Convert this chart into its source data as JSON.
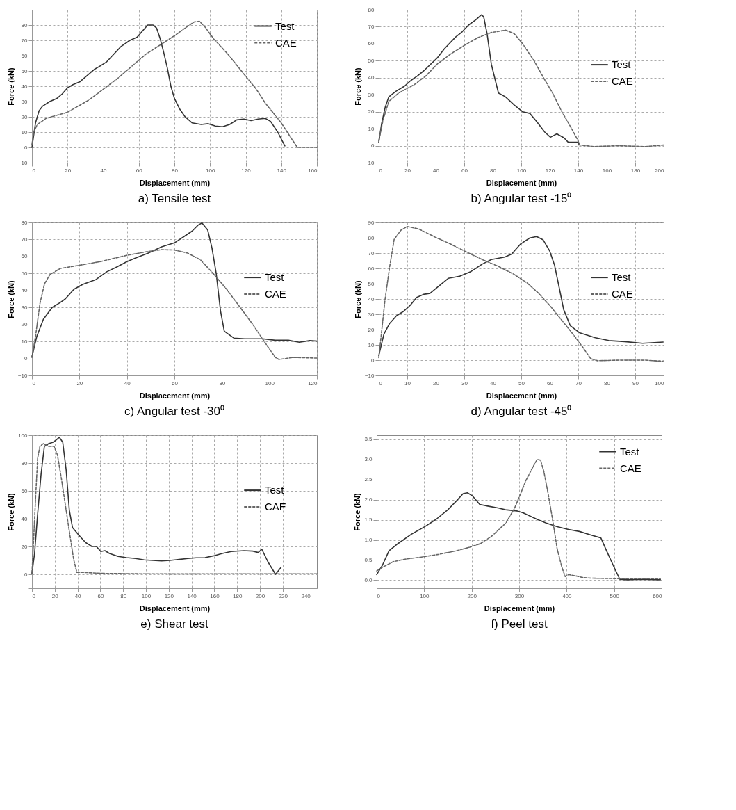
{
  "chart_data": [
    {
      "type": "line",
      "title": "a) Tensile test",
      "xlabel": "Displacement (mm)",
      "ylabel": "Force (kN)",
      "xlim": [
        0,
        160
      ],
      "xticks": [
        0,
        20,
        40,
        60,
        80,
        100,
        120,
        140,
        160
      ],
      "ylim": [
        -10,
        90
      ],
      "yticks": [
        -10,
        0,
        10,
        20,
        30,
        40,
        50,
        60,
        70,
        80
      ],
      "grid": true,
      "legend": "top right",
      "series": [
        {
          "name": "Test",
          "color": "#333333",
          "line_style": "solid",
          "x": [
            0,
            1,
            2,
            4,
            6,
            10,
            14,
            17,
            20,
            23,
            27,
            31,
            35,
            38,
            42,
            46,
            50,
            55,
            59,
            62,
            65,
            68,
            70,
            72,
            74,
            76,
            78,
            80,
            83,
            86,
            90,
            95,
            99,
            103,
            107,
            111,
            115,
            119,
            123,
            127,
            131,
            134,
            138,
            142
          ],
          "values": [
            0,
            8,
            16,
            24,
            27,
            30,
            32,
            35,
            39,
            41,
            43,
            47,
            51,
            53,
            56,
            61,
            66,
            70,
            72,
            76,
            80,
            80,
            78,
            71,
            62,
            52,
            40,
            32,
            25,
            20,
            16,
            15,
            15.5,
            14,
            13.5,
            15,
            18,
            18.5,
            17.5,
            18.5,
            19,
            17,
            10,
            1
          ]
        },
        {
          "name": "CAE",
          "color": "#666666",
          "line_style": "dashed",
          "x": [
            0,
            1,
            3,
            8,
            14,
            20,
            26,
            32,
            40,
            48,
            56,
            64,
            72,
            80,
            86,
            91,
            94,
            97,
            102,
            110,
            119,
            126,
            131,
            140,
            145,
            149,
            160
          ],
          "values": [
            2,
            10,
            15,
            19,
            21,
            23,
            27,
            31,
            38,
            45,
            53,
            61,
            67,
            73,
            78,
            82,
            82.5,
            79,
            71,
            61,
            48,
            38,
            29,
            16,
            7,
            0,
            0
          ]
        }
      ]
    },
    {
      "type": "line",
      "title": "b) Angular test -15⁰",
      "xlabel": "Displacement (mm)",
      "ylabel": "Force (kN)",
      "xlim": [
        0,
        200
      ],
      "xticks": [
        0,
        20,
        40,
        60,
        80,
        100,
        120,
        140,
        160,
        180,
        200
      ],
      "ylim": [
        -10,
        80
      ],
      "yticks": [
        -10,
        0,
        10,
        20,
        30,
        40,
        50,
        60,
        70,
        80
      ],
      "grid": true,
      "legend": "right",
      "series": [
        {
          "name": "Test",
          "color": "#333333",
          "line_style": "solid",
          "x": [
            0,
            2,
            4.5,
            7,
            12,
            18,
            22,
            27,
            31.5,
            41,
            46,
            54,
            58.5,
            63,
            68,
            72,
            73.6,
            76,
            79,
            84,
            89,
            95,
            101,
            106,
            111,
            116.5,
            120.5,
            125,
            130,
            133,
            139.6,
            141
          ],
          "values": [
            2,
            13,
            22.6,
            28.7,
            32,
            35,
            38,
            41,
            44,
            51.6,
            57,
            64,
            67,
            71,
            74,
            77,
            76,
            66,
            48,
            31,
            28.7,
            24,
            20,
            19,
            14,
            8,
            5,
            7,
            4.6,
            2,
            2,
            0.4
          ]
        },
        {
          "name": "CAE",
          "color": "#666666",
          "line_style": "dashed",
          "x": [
            0,
            3,
            7,
            14,
            25,
            33,
            41,
            50.5,
            60,
            69.6,
            79,
            89,
            95,
            101,
            109,
            116,
            122,
            128.5,
            135,
            139.6,
            141,
            151,
            168,
            187,
            200
          ],
          "values": [
            3,
            15,
            26,
            31,
            36,
            41,
            48,
            54,
            59,
            63.6,
            66.6,
            68,
            66,
            60,
            50,
            39.5,
            31,
            20,
            10.6,
            3.4,
            0.4,
            -0.5,
            0,
            -0.5,
            0.4
          ]
        }
      ]
    },
    {
      "type": "line",
      "title": "c) Angular test -30⁰",
      "xlabel": "Displacement (mm)",
      "ylabel": "Force (kN)",
      "xlim": [
        0,
        120
      ],
      "xticks": [
        0,
        20,
        40,
        60,
        80,
        100,
        120
      ],
      "ylim": [
        -10,
        80
      ],
      "yticks": [
        -10,
        0,
        10,
        20,
        30,
        40,
        50,
        60,
        70,
        80
      ],
      "grid": true,
      "legend": "right",
      "series": [
        {
          "name": "Test",
          "color": "#333333",
          "line_style": "solid",
          "x": [
            0,
            2,
            4.8,
            8.5,
            12,
            14,
            17.7,
            21.4,
            27,
            31.5,
            36,
            40,
            43.5,
            49,
            54.6,
            60,
            63.8,
            67.5,
            70,
            71.6,
            74,
            75.8,
            77.6,
            79.4,
            81,
            85,
            89.6,
            97,
            102.5,
            108,
            112.6,
            117,
            120
          ],
          "values": [
            1,
            12.8,
            23,
            30,
            33,
            35,
            40.7,
            43.6,
            46.5,
            51,
            54,
            57,
            59,
            62,
            65.7,
            68,
            71.5,
            75,
            78.5,
            79.7,
            75.6,
            65,
            50,
            28,
            16,
            12,
            11.6,
            11.6,
            10.7,
            10.7,
            9.5,
            10.5,
            10.2
          ]
        },
        {
          "name": "CAE",
          "color": "#666666",
          "line_style": "dashed",
          "x": [
            0,
            1.6,
            3.4,
            5.3,
            7.6,
            12,
            19.5,
            28.8,
            40,
            49,
            54.6,
            60,
            65.6,
            71,
            76.7,
            82,
            87.7,
            93,
            98.8,
            102.5,
            104,
            110,
            120
          ],
          "values": [
            0.6,
            14,
            32.6,
            44,
            49.4,
            53,
            54.7,
            57,
            60.7,
            63,
            64,
            63.8,
            62,
            58,
            49.4,
            40.7,
            30,
            20,
            8,
            0.6,
            -0.6,
            0.6,
            0.2
          ]
        }
      ]
    },
    {
      "type": "line",
      "title": "d) Angular test -45⁰",
      "xlabel": "Displacement (mm)",
      "ylabel": "Force (kN)",
      "xlim": [
        0,
        100
      ],
      "xticks": [
        0,
        10,
        20,
        30,
        40,
        50,
        60,
        70,
        80,
        90,
        100
      ],
      "ylim": [
        -10,
        90
      ],
      "yticks": [
        -10,
        0,
        10,
        20,
        30,
        40,
        50,
        60,
        70,
        80,
        90
      ],
      "grid": true,
      "legend": "right",
      "series": [
        {
          "name": "Test",
          "color": "#333333",
          "line_style": "solid",
          "x": [
            0,
            1.8,
            3.8,
            6.2,
            8.6,
            11,
            13.3,
            15.7,
            18,
            20.5,
            24.4,
            28.4,
            32.4,
            36.3,
            39.5,
            44.2,
            46.6,
            49.8,
            53,
            55.4,
            57.7,
            60,
            61.7,
            63.3,
            64.9,
            67.2,
            70.4,
            76,
            80.7,
            86.3,
            92.6,
            99.8
          ],
          "values": [
            3,
            17,
            24,
            29,
            31.8,
            35.8,
            41,
            43,
            43.7,
            47.6,
            53.5,
            54.9,
            58,
            62.8,
            65.8,
            67.4,
            69.3,
            76,
            79.9,
            80.8,
            78.6,
            71.3,
            62,
            47.6,
            33,
            22.6,
            18,
            14.7,
            12.8,
            12.1,
            11,
            11.8
          ]
        },
        {
          "name": "CAE",
          "color": "#666666",
          "line_style": "dashed",
          "x": [
            0,
            1,
            2.2,
            3.8,
            5.4,
            7.8,
            10,
            14,
            19.7,
            25.2,
            30.8,
            36.3,
            41.9,
            47.4,
            52.2,
            56.1,
            60,
            64,
            68,
            71.2,
            74.4,
            76.8,
            84,
            93.4,
            99.8
          ],
          "values": [
            1.6,
            18.7,
            39.7,
            60.8,
            79,
            85,
            87.4,
            85.8,
            80.5,
            75.9,
            70.7,
            65.8,
            61.4,
            56.2,
            50.3,
            43.7,
            35.8,
            26.6,
            17.4,
            9.5,
            0.9,
            -0.4,
            0,
            0,
            -0.8
          ]
        }
      ]
    },
    {
      "type": "line",
      "title": "e) Shear test",
      "xlabel": "Displacement (mm)",
      "ylabel": "Force (kN)",
      "xlim": [
        0,
        250
      ],
      "xticks": [
        0,
        20,
        40,
        60,
        80,
        100,
        120,
        140,
        160,
        180,
        200,
        220,
        240
      ],
      "ylim": [
        -10,
        100
      ],
      "yticks": [
        {
          "value": -10,
          "label": null
        },
        0,
        20,
        40,
        60,
        80,
        100
      ],
      "grid": true,
      "legend": "right",
      "series": [
        {
          "name": "Test",
          "color": "#333333",
          "line_style": "solid",
          "x": [
            0,
            2.3,
            5,
            8,
            10.9,
            14.7,
            18.5,
            21,
            24,
            27,
            30,
            32.8,
            35.6,
            41.3,
            47,
            52.7,
            56.6,
            60.4,
            64,
            68,
            75.6,
            83,
            91,
            98.5,
            106,
            113.7,
            121,
            129,
            136.6,
            144,
            151.8,
            159.4,
            167,
            174.7,
            186,
            193.7,
            198.5,
            201.7,
            207,
            213.7,
            218.5
          ],
          "values": [
            0.7,
            15,
            43.6,
            72,
            92,
            94,
            95,
            96.4,
            98.6,
            95,
            75,
            46,
            33.6,
            28,
            22.9,
            20,
            20,
            16.4,
            17,
            15,
            12.9,
            12,
            11.4,
            10.4,
            10,
            9.6,
            10,
            10.7,
            11.4,
            11.9,
            12,
            13.3,
            15,
            16.4,
            17,
            16.7,
            15.7,
            18,
            9,
            0,
            5
          ]
        },
        {
          "name": "CAE",
          "color": "#666666",
          "line_style": "dashed",
          "x": [
            0,
            1.3,
            3.2,
            5,
            7,
            10,
            14.7,
            19.4,
            22.3,
            26,
            30,
            33.7,
            36.6,
            39.4,
            45,
            60.4,
            94.7,
            132.8,
            170.9,
            209,
            250
          ],
          "values": [
            0.7,
            22,
            55,
            83.6,
            92,
            94,
            92,
            92,
            86,
            68,
            46,
            26,
            10.7,
            1.4,
            1.4,
            0.7,
            0.4,
            0.3,
            0.4,
            0.4,
            0.4
          ]
        }
      ]
    },
    {
      "type": "line",
      "title": "f) Peel test",
      "xlabel": "Displacement (mm)",
      "ylabel": "Force (kN)",
      "xlim": [
        0,
        600
      ],
      "xticks": [
        0,
        100,
        200,
        300,
        400,
        500,
        600
      ],
      "ylim": [
        -0.2,
        3.6
      ],
      "yticks": [
        {
          "value": 0,
          "label": "0.0"
        },
        0.5,
        {
          "value": 1,
          "label": "1.0"
        },
        1.5,
        {
          "value": 2,
          "label": "2.0"
        },
        2.5,
        {
          "value": 3,
          "label": "3.0"
        },
        3.5
      ],
      "grid": true,
      "legend": "top right",
      "series": [
        {
          "name": "Test",
          "color": "#333333",
          "line_style": "solid",
          "x": [
            0,
            12,
            26,
            45,
            73,
            101.5,
            125,
            149,
            168,
            182,
            191,
            201,
            217,
            234,
            257,
            271,
            295,
            309,
            338,
            357,
            380,
            404,
            427,
            451,
            472,
            484,
            498,
            512,
            527,
            555,
            597.5
          ],
          "values": [
            0.14,
            0.37,
            0.73,
            0.91,
            1.14,
            1.33,
            1.51,
            1.74,
            1.97,
            2.15,
            2.17,
            2.1,
            1.88,
            1.84,
            1.79,
            1.75,
            1.72,
            1.67,
            1.51,
            1.42,
            1.33,
            1.26,
            1.21,
            1.12,
            1.05,
            0.73,
            0.37,
            0.02,
            0.01,
            0.02,
            0.01
          ]
        },
        {
          "name": "CAE",
          "color": "#666666",
          "line_style": "dashed",
          "x": [
            0,
            12,
            35,
            64,
            92,
            130,
            168,
            196,
            219,
            243,
            272,
            290,
            300,
            314,
            328,
            338,
            345,
            352,
            361,
            371,
            380,
            390,
            397,
            404,
            418,
            432,
            451,
            498,
            545,
            597.5
          ],
          "values": [
            0.23,
            0.32,
            0.46,
            0.53,
            0.57,
            0.64,
            0.73,
            0.82,
            0.91,
            1.1,
            1.42,
            1.78,
            2.06,
            2.47,
            2.79,
            3.0,
            2.98,
            2.7,
            2.15,
            1.46,
            0.78,
            0.32,
            0.09,
            0.14,
            0.11,
            0.07,
            0.05,
            0.04,
            0.04,
            0.04
          ]
        }
      ]
    }
  ]
}
